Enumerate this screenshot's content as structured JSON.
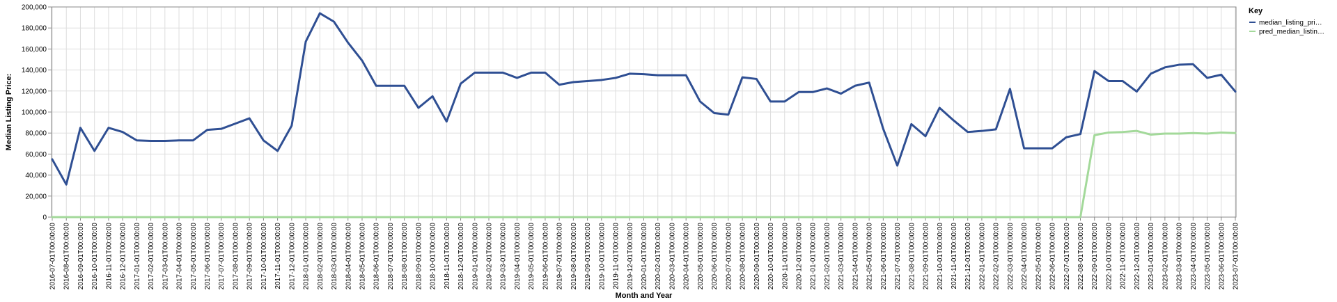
{
  "chart_data": {
    "type": "line",
    "xlabel": "Month and Year",
    "ylabel": "Median Listing Price:",
    "ylim": [
      0,
      200000
    ],
    "yticks": [
      "0",
      "20,000",
      "40,000",
      "60,000",
      "80,000",
      "100,000",
      "120,000",
      "140,000",
      "160,000",
      "180,000",
      "200,000"
    ],
    "grid": true,
    "legend": {
      "title": "Key",
      "position": "right"
    },
    "x": [
      "2016-07-01T00:00:00",
      "2016-08-01T00:00:00",
      "2016-09-01T00:00:00",
      "2016-10-01T00:00:00",
      "2016-11-01T00:00:00",
      "2016-12-01T00:00:00",
      "2017-01-01T00:00:00",
      "2017-02-01T00:00:00",
      "2017-03-01T00:00:00",
      "2017-04-01T00:00:00",
      "2017-05-01T00:00:00",
      "2017-06-01T00:00:00",
      "2017-07-01T00:00:00",
      "2017-08-01T00:00:00",
      "2017-09-01T00:00:00",
      "2017-10-01T00:00:00",
      "2017-11-01T00:00:00",
      "2017-12-01T00:00:00",
      "2018-01-01T00:00:00",
      "2018-02-01T00:00:00",
      "2018-03-01T00:00:00",
      "2018-04-01T00:00:00",
      "2018-05-01T00:00:00",
      "2018-06-01T00:00:00",
      "2018-07-01T00:00:00",
      "2018-08-01T00:00:00",
      "2018-09-01T00:00:00",
      "2018-10-01T00:00:00",
      "2018-11-01T00:00:00",
      "2018-12-01T00:00:00",
      "2019-01-01T00:00:00",
      "2019-02-01T00:00:00",
      "2019-03-01T00:00:00",
      "2019-04-01T00:00:00",
      "2019-05-01T00:00:00",
      "2019-06-01T00:00:00",
      "2019-07-01T00:00:00",
      "2019-08-01T00:00:00",
      "2019-09-01T00:00:00",
      "2019-10-01T00:00:00",
      "2019-11-01T00:00:00",
      "2019-12-01T00:00:00",
      "2020-01-01T00:00:00",
      "2020-02-01T00:00:00",
      "2020-03-01T00:00:00",
      "2020-04-01T00:00:00",
      "2020-05-01T00:00:00",
      "2020-06-01T00:00:00",
      "2020-07-01T00:00:00",
      "2020-08-01T00:00:00",
      "2020-09-01T00:00:00",
      "2020-10-01T00:00:00",
      "2020-11-01T00:00:00",
      "2020-12-01T00:00:00",
      "2021-01-01T00:00:00",
      "2021-02-01T00:00:00",
      "2021-03-01T00:00:00",
      "2021-04-01T00:00:00",
      "2021-05-01T00:00:00",
      "2021-06-01T00:00:00",
      "2021-07-01T00:00:00",
      "2021-08-01T00:00:00",
      "2021-09-01T00:00:00",
      "2021-10-01T00:00:00",
      "2021-11-01T00:00:00",
      "2021-12-01T00:00:00",
      "2022-01-01T00:00:00",
      "2022-02-01T00:00:00",
      "2022-03-01T00:00:00",
      "2022-04-01T00:00:00",
      "2022-05-01T00:00:00",
      "2022-06-01T00:00:00",
      "2022-07-01T00:00:00",
      "2022-08-01T00:00:00",
      "2022-09-01T00:00:00",
      "2022-10-01T00:00:00",
      "2022-11-01T00:00:00",
      "2022-12-01T00:00:00",
      "2023-01-01T00:00:00",
      "2023-02-01T00:00:00",
      "2023-03-01T00:00:00",
      "2023-04-01T00:00:00",
      "2023-05-01T00:00:00",
      "2023-06-01T00:00:00",
      "2023-07-01T00:00:00"
    ],
    "series": [
      {
        "name": "median_listing_pri…",
        "color": "#2f4f93",
        "values": [
          55000,
          31000,
          85000,
          63000,
          85000,
          81000,
          73000,
          72500,
          72500,
          73000,
          73000,
          83000,
          84000,
          89000,
          94000,
          73000,
          63000,
          87000,
          167000,
          194000,
          186000,
          166000,
          149000,
          125000,
          125000,
          125000,
          104000,
          115000,
          91000,
          127000,
          137500,
          137500,
          137500,
          132500,
          137500,
          137500,
          126000,
          128500,
          129500,
          130500,
          132500,
          136500,
          136000,
          135000,
          135000,
          135000,
          110000,
          99000,
          97500,
          133000,
          131500,
          110000,
          110000,
          119000,
          119000,
          122500,
          117500,
          125000,
          128000,
          84000,
          49000,
          88500,
          77000,
          104000,
          92000,
          81000,
          82000,
          83500,
          122000,
          65500,
          65500,
          65500,
          76000,
          79000,
          139000,
          129500,
          129500,
          119500,
          136500,
          142500,
          145000,
          145500,
          132500,
          135500,
          119500
        ]
      },
      {
        "name": "pred_median_listin…",
        "color": "#a3d99a",
        "values": [
          0,
          0,
          0,
          0,
          0,
          0,
          0,
          0,
          0,
          0,
          0,
          0,
          0,
          0,
          0,
          0,
          0,
          0,
          0,
          0,
          0,
          0,
          0,
          0,
          0,
          0,
          0,
          0,
          0,
          0,
          0,
          0,
          0,
          0,
          0,
          0,
          0,
          0,
          0,
          0,
          0,
          0,
          0,
          0,
          0,
          0,
          0,
          0,
          0,
          0,
          0,
          0,
          0,
          0,
          0,
          0,
          0,
          0,
          0,
          0,
          0,
          0,
          0,
          0,
          0,
          0,
          0,
          0,
          0,
          0,
          0,
          0,
          0,
          0,
          78000,
          80500,
          81000,
          82000,
          78500,
          79500,
          79500,
          80000,
          79500,
          80500,
          80000
        ]
      }
    ]
  }
}
